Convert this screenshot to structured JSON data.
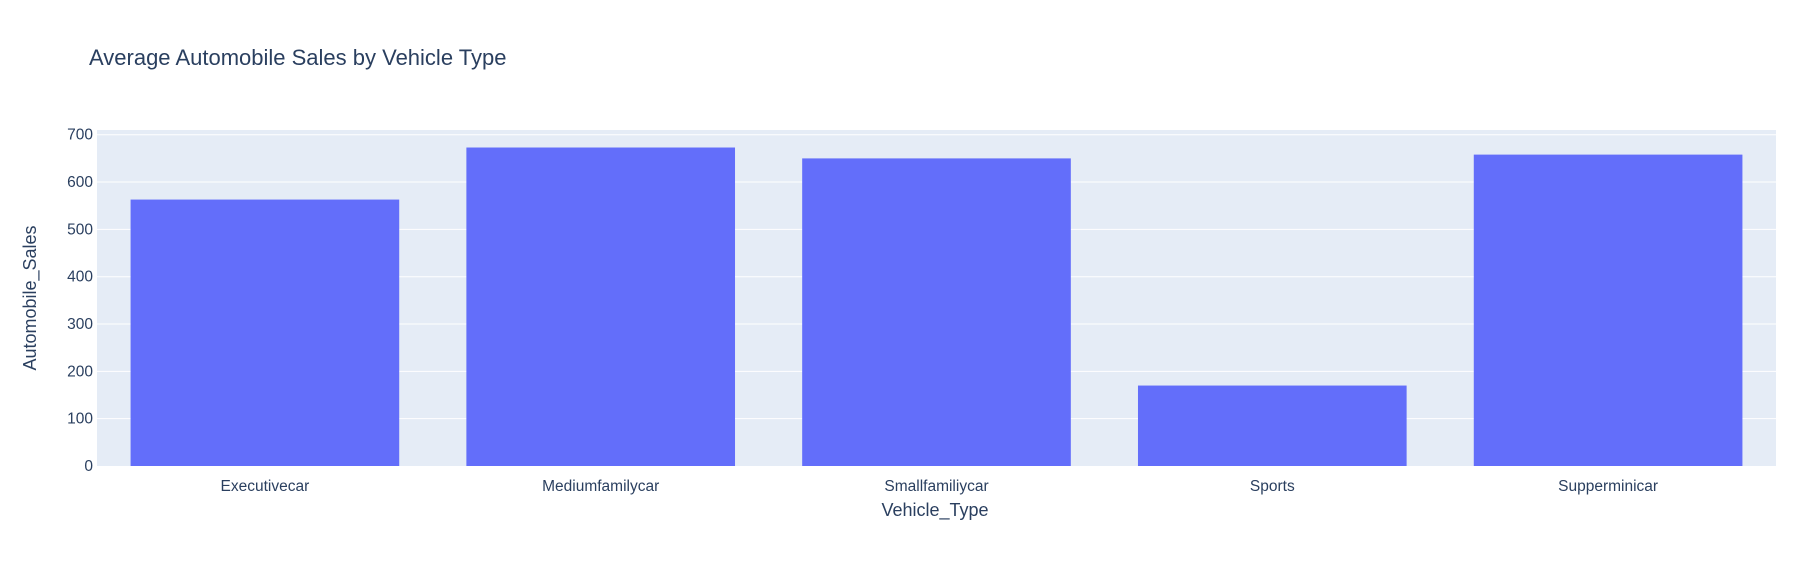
{
  "chart_data": {
    "type": "bar",
    "title": "Average Automobile Sales by Vehicle Type",
    "xlabel": "Vehicle_Type",
    "ylabel": "Automobile_Sales",
    "categories": [
      "Executivecar",
      "Mediumfamilycar",
      "Smallfamiliycar",
      "Sports",
      "Supperminicar"
    ],
    "values": [
      563,
      673,
      650,
      170,
      658
    ],
    "ylim": [
      0,
      710
    ],
    "yticks": [
      0,
      100,
      200,
      300,
      400,
      500,
      600,
      700
    ],
    "grid": true,
    "bar_color": "#636efa",
    "plot_background": "#e5ecf6",
    "text_color": "#2a3f5f"
  }
}
